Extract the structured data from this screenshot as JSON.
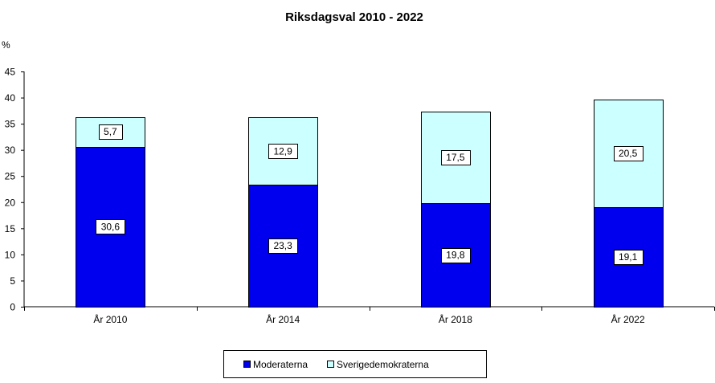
{
  "chart_data": {
    "type": "bar",
    "stacked": true,
    "title": "Riksdagsval 2010 - 2022",
    "ylabel": "%",
    "xlabel": "",
    "ylim": [
      0,
      45
    ],
    "yticks": [
      "0",
      "5",
      "10",
      "15",
      "20",
      "25",
      "30",
      "35",
      "40",
      "45"
    ],
    "categories": [
      "År 2010",
      "År 2014",
      "År 2018",
      "År 2022"
    ],
    "series": [
      {
        "name": "Moderaterna",
        "values": [
          30.6,
          23.3,
          19.8,
          19.1
        ],
        "labels": [
          "30,6",
          "23,3",
          "19,8",
          "19,1"
        ],
        "color": "#0000EE"
      },
      {
        "name": "Sverigedemokraterna",
        "values": [
          5.7,
          12.9,
          17.5,
          20.5
        ],
        "labels": [
          "5,7",
          "12,9",
          "17,5",
          "20,5"
        ],
        "color": "#CCFFFF"
      }
    ],
    "grid": false,
    "legend_position": "bottom"
  }
}
